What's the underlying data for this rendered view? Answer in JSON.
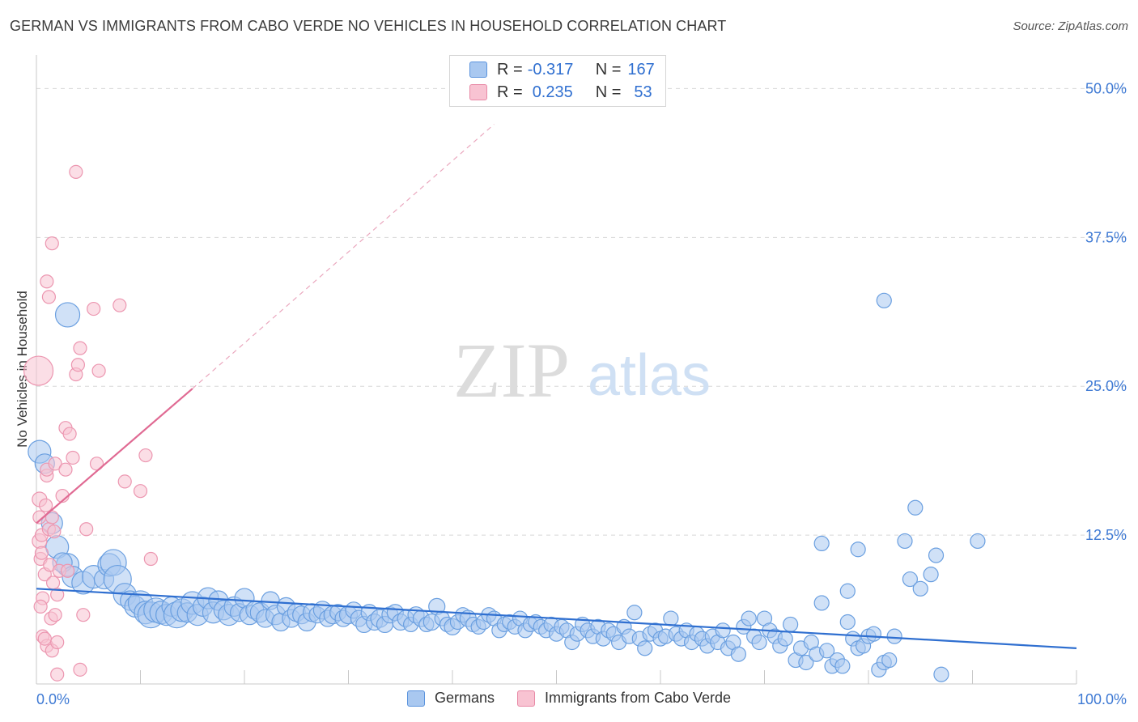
{
  "title": "GERMAN VS IMMIGRANTS FROM CABO VERDE NO VEHICLES IN HOUSEHOLD CORRELATION CHART",
  "source": "Source: ZipAtlas.com",
  "watermark": {
    "zip": "ZIP",
    "atlas": "atlas"
  },
  "legend_top": {
    "rows": [
      {
        "r_label": "R =",
        "r_value": "-0.317",
        "n_label": "N =",
        "n_value": "167",
        "color": "#a9c8f0",
        "border": "#5b93dd"
      },
      {
        "r_label": "R =",
        "r_value": "0.235",
        "n_label": "N =",
        "n_value": "53",
        "color": "#f8c3d2",
        "border": "#e889a6"
      }
    ]
  },
  "legend_bottom": [
    {
      "label": "Germans",
      "color": "#a9c8f0",
      "border": "#5b93dd"
    },
    {
      "label": "Immigrants from Cabo Verde",
      "color": "#f8c3d2",
      "border": "#e889a6"
    }
  ],
  "chart_data": {
    "type": "scatter",
    "title": "GERMAN VS IMMIGRANTS FROM CABO VERDE NO VEHICLES IN HOUSEHOLD CORRELATION CHART",
    "xlabel": "",
    "ylabel": "No Vehicles in Household",
    "xlim": [
      0,
      100
    ],
    "ylim": [
      0,
      52
    ],
    "x_tick_labels": [
      "0.0%",
      "100.0%"
    ],
    "y_ticks": [
      12.5,
      25.0,
      37.5,
      50.0
    ],
    "y_tick_labels": [
      "12.5%",
      "25.0%",
      "37.5%",
      "50.0%"
    ],
    "grid": true,
    "series": [
      {
        "name": "Germans",
        "color": "#6a9fe0",
        "fill": "#a9c8f0",
        "trend": {
          "x0": 0,
          "y0": 8.0,
          "x1": 100,
          "y1": 3.0,
          "color": "#2f6fd0"
        },
        "points": [
          [
            0.3,
            19.5,
            14
          ],
          [
            0.8,
            18.5,
            12
          ],
          [
            1.5,
            13.5,
            13
          ],
          [
            2.0,
            11.5,
            14
          ],
          [
            3.0,
            10.0,
            14
          ],
          [
            2.5,
            10.2,
            12
          ],
          [
            3.5,
            9.0,
            13
          ],
          [
            4.5,
            8.5,
            14
          ],
          [
            5.5,
            9.0,
            14
          ],
          [
            6.5,
            8.8,
            12
          ],
          [
            7.0,
            10.0,
            14
          ],
          [
            7.4,
            10.2,
            16
          ],
          [
            7.8,
            8.8,
            17
          ],
          [
            8.5,
            7.5,
            14
          ],
          [
            9.0,
            7.0,
            12
          ],
          [
            9.5,
            6.5,
            13
          ],
          [
            10.0,
            6.8,
            15
          ],
          [
            10.5,
            6.0,
            14
          ],
          [
            11.0,
            5.8,
            16
          ],
          [
            11.5,
            6.2,
            15
          ],
          [
            12.0,
            6.0,
            14
          ],
          [
            12.5,
            5.8,
            13
          ],
          [
            13.0,
            6.5,
            12
          ],
          [
            13.5,
            5.8,
            16
          ],
          [
            14.0,
            6.2,
            14
          ],
          [
            14.5,
            6.0,
            12
          ],
          [
            15.0,
            6.8,
            14
          ],
          [
            15.5,
            5.8,
            13
          ],
          [
            16.0,
            6.5,
            12
          ],
          [
            16.5,
            7.2,
            13
          ],
          [
            17.0,
            6.0,
            13
          ],
          [
            17.5,
            7.0,
            12
          ],
          [
            18.0,
            6.2,
            12
          ],
          [
            18.5,
            5.8,
            13
          ],
          [
            19.0,
            6.5,
            12
          ],
          [
            19.5,
            6.0,
            11
          ],
          [
            20.0,
            7.2,
            12
          ],
          [
            20.5,
            5.8,
            12
          ],
          [
            21.0,
            6.2,
            11
          ],
          [
            21.5,
            6.0,
            12
          ],
          [
            22.0,
            5.5,
            11
          ],
          [
            22.5,
            7.0,
            11
          ],
          [
            23.0,
            5.8,
            12
          ],
          [
            23.5,
            5.2,
            11
          ],
          [
            24.0,
            6.5,
            11
          ],
          [
            24.5,
            5.5,
            11
          ],
          [
            25.0,
            6.0,
            11
          ],
          [
            25.5,
            5.8,
            11
          ],
          [
            26.0,
            5.2,
            11
          ],
          [
            26.5,
            6.0,
            11
          ],
          [
            27.0,
            5.8,
            10
          ],
          [
            27.5,
            6.2,
            11
          ],
          [
            28.0,
            5.5,
            10
          ],
          [
            28.5,
            5.8,
            11
          ],
          [
            29.0,
            6.0,
            10
          ],
          [
            29.5,
            5.5,
            10
          ],
          [
            30.0,
            5.8,
            11
          ],
          [
            30.5,
            6.2,
            10
          ],
          [
            31.0,
            5.5,
            10
          ],
          [
            31.5,
            5.0,
            10
          ],
          [
            32.0,
            6.0,
            10
          ],
          [
            32.5,
            5.2,
            10
          ],
          [
            33.0,
            5.5,
            11
          ],
          [
            33.5,
            5.0,
            10
          ],
          [
            34.0,
            5.8,
            10
          ],
          [
            34.5,
            6.0,
            10
          ],
          [
            35.0,
            5.2,
            10
          ],
          [
            35.5,
            5.5,
            10
          ],
          [
            36.0,
            5.0,
            9
          ],
          [
            36.5,
            5.8,
            10
          ],
          [
            37.0,
            5.5,
            10
          ],
          [
            37.5,
            5.0,
            9
          ],
          [
            38.0,
            5.2,
            10
          ],
          [
            38.5,
            6.5,
            10
          ],
          [
            39.0,
            5.5,
            9
          ],
          [
            39.5,
            5.0,
            9
          ],
          [
            40.0,
            4.8,
            10
          ],
          [
            40.5,
            5.2,
            9
          ],
          [
            41.0,
            5.8,
            9
          ],
          [
            41.5,
            5.5,
            10
          ],
          [
            42.0,
            5.0,
            9
          ],
          [
            42.5,
            4.8,
            9
          ],
          [
            43.0,
            5.2,
            9
          ],
          [
            43.5,
            5.8,
            9
          ],
          [
            44.0,
            5.5,
            9
          ],
          [
            44.5,
            4.5,
            9
          ],
          [
            45.0,
            5.0,
            9
          ],
          [
            45.5,
            5.2,
            9
          ],
          [
            46.0,
            4.8,
            9
          ],
          [
            46.5,
            5.5,
            9
          ],
          [
            47.0,
            4.5,
            9
          ],
          [
            47.5,
            5.0,
            9
          ],
          [
            48.0,
            5.2,
            9
          ],
          [
            48.5,
            4.8,
            9
          ],
          [
            49.0,
            4.5,
            9
          ],
          [
            49.5,
            5.0,
            9
          ],
          [
            50.0,
            4.2,
            9
          ],
          [
            50.5,
            4.8,
            9
          ],
          [
            51.0,
            4.5,
            9
          ],
          [
            51.5,
            3.5,
            9
          ],
          [
            52.0,
            4.2,
            9
          ],
          [
            52.5,
            5.0,
            9
          ],
          [
            53.0,
            4.5,
            9
          ],
          [
            53.5,
            4.0,
            9
          ],
          [
            54.0,
            4.8,
            9
          ],
          [
            54.5,
            3.8,
            9
          ],
          [
            55.0,
            4.5,
            9
          ],
          [
            55.5,
            4.2,
            9
          ],
          [
            56.0,
            3.5,
            9
          ],
          [
            56.5,
            4.8,
            9
          ],
          [
            57.0,
            4.0,
            9
          ],
          [
            57.5,
            6.0,
            9
          ],
          [
            58.0,
            3.8,
            9
          ],
          [
            58.5,
            3.0,
            9
          ],
          [
            59.0,
            4.2,
            9
          ],
          [
            59.5,
            4.5,
            9
          ],
          [
            60.0,
            3.8,
            9
          ],
          [
            60.5,
            4.0,
            9
          ],
          [
            61.0,
            5.5,
            9
          ],
          [
            61.5,
            4.2,
            9
          ],
          [
            62.0,
            3.8,
            9
          ],
          [
            62.5,
            4.5,
            9
          ],
          [
            63.0,
            3.5,
            9
          ],
          [
            63.5,
            4.2,
            9
          ],
          [
            64.0,
            3.8,
            9
          ],
          [
            64.5,
            3.2,
            9
          ],
          [
            65.0,
            4.0,
            9
          ],
          [
            65.5,
            3.5,
            9
          ],
          [
            66.0,
            4.5,
            9
          ],
          [
            66.5,
            3.0,
            9
          ],
          [
            67.0,
            3.5,
            9
          ],
          [
            67.5,
            2.5,
            9
          ],
          [
            68.0,
            4.8,
            9
          ],
          [
            68.5,
            5.5,
            9
          ],
          [
            69.0,
            4.0,
            9
          ],
          [
            69.5,
            3.5,
            9
          ],
          [
            70.0,
            5.5,
            9
          ],
          [
            70.5,
            4.5,
            9
          ],
          [
            71.0,
            4.0,
            9
          ],
          [
            71.5,
            3.2,
            9
          ],
          [
            72.0,
            3.8,
            9
          ],
          [
            72.5,
            5.0,
            9
          ],
          [
            73.0,
            2.0,
            9
          ],
          [
            73.5,
            3.0,
            9
          ],
          [
            74.0,
            1.8,
            9
          ],
          [
            74.5,
            3.5,
            9
          ],
          [
            75.0,
            2.5,
            9
          ],
          [
            75.5,
            6.8,
            9
          ],
          [
            76.0,
            2.8,
            9
          ],
          [
            76.5,
            1.5,
            9
          ],
          [
            77.0,
            2.0,
            9
          ],
          [
            77.5,
            1.5,
            9
          ],
          [
            78.0,
            5.2,
            9
          ],
          [
            78.5,
            3.8,
            9
          ],
          [
            79.0,
            3.0,
            9
          ],
          [
            79.5,
            3.2,
            9
          ],
          [
            80.0,
            4.0,
            9
          ],
          [
            80.5,
            4.2,
            9
          ],
          [
            81.0,
            1.2,
            9
          ],
          [
            81.5,
            1.8,
            9
          ],
          [
            82.0,
            2.0,
            9
          ],
          [
            82.5,
            4.0,
            9
          ],
          [
            84.0,
            8.8,
            9
          ],
          [
            85.0,
            8.0,
            9
          ],
          [
            86.0,
            9.2,
            9
          ],
          [
            87.0,
            0.8,
            9
          ],
          [
            86.5,
            10.8,
            9
          ],
          [
            78.0,
            7.8,
            9
          ],
          [
            75.5,
            11.8,
            9
          ],
          [
            79.0,
            11.3,
            9
          ],
          [
            90.5,
            12.0,
            9
          ],
          [
            83.5,
            12.0,
            9
          ],
          [
            84.5,
            14.8,
            9
          ],
          [
            81.5,
            32.2,
            9
          ],
          [
            3.0,
            31.0,
            15
          ]
        ]
      },
      {
        "name": "Immigrants from Cabo Verde",
        "color": "#ec96b0",
        "fill": "#f8c3d2",
        "trend": {
          "x0": 0,
          "y0": 13.5,
          "x1": 15,
          "y1": 24.8,
          "dash_x1": 44,
          "dash_y1": 47.0,
          "color": "#e06a93"
        },
        "points": [
          [
            0.2,
            26.3,
            18
          ],
          [
            0.3,
            15.5,
            9
          ],
          [
            0.3,
            14.0,
            8
          ],
          [
            0.3,
            12.0,
            9
          ],
          [
            0.4,
            10.5,
            8
          ],
          [
            0.5,
            12.5,
            8
          ],
          [
            0.6,
            7.2,
            8
          ],
          [
            0.6,
            4.0,
            8
          ],
          [
            0.8,
            9.2,
            8
          ],
          [
            0.9,
            15.0,
            8
          ],
          [
            1.0,
            17.5,
            8
          ],
          [
            1.0,
            18.0,
            8
          ],
          [
            1.0,
            3.2,
            8
          ],
          [
            1.2,
            13.0,
            8
          ],
          [
            1.2,
            32.5,
            8
          ],
          [
            1.3,
            10.0,
            8
          ],
          [
            1.4,
            5.5,
            8
          ],
          [
            1.5,
            2.8,
            8
          ],
          [
            1.5,
            14.0,
            8
          ],
          [
            1.5,
            37.0,
            8
          ],
          [
            1.6,
            8.5,
            8
          ],
          [
            1.8,
            5.8,
            8
          ],
          [
            1.8,
            18.5,
            8
          ],
          [
            2.0,
            7.5,
            8
          ],
          [
            2.0,
            0.8,
            8
          ],
          [
            2.2,
            9.5,
            8
          ],
          [
            2.5,
            15.8,
            8
          ],
          [
            2.8,
            21.5,
            8
          ],
          [
            2.8,
            18.0,
            8
          ],
          [
            3.2,
            21.0,
            8
          ],
          [
            3.5,
            19.0,
            8
          ],
          [
            3.8,
            43.0,
            8
          ],
          [
            3.8,
            26.0,
            8
          ],
          [
            4.0,
            26.8,
            8
          ],
          [
            4.2,
            28.2,
            8
          ],
          [
            4.2,
            1.2,
            8
          ],
          [
            4.5,
            5.8,
            8
          ],
          [
            4.8,
            13.0,
            8
          ],
          [
            5.5,
            31.5,
            8
          ],
          [
            5.8,
            18.5,
            8
          ],
          [
            6.0,
            26.3,
            8
          ],
          [
            8.0,
            31.8,
            8
          ],
          [
            8.5,
            17.0,
            8
          ],
          [
            10.0,
            16.2,
            8
          ],
          [
            10.5,
            19.2,
            8
          ],
          [
            11.0,
            10.5,
            8
          ],
          [
            1.0,
            33.8,
            8
          ],
          [
            2.0,
            3.5,
            8
          ],
          [
            0.8,
            3.8,
            8
          ],
          [
            1.7,
            12.8,
            8
          ],
          [
            0.5,
            11.0,
            8
          ],
          [
            0.4,
            6.5,
            8
          ],
          [
            3.0,
            9.5,
            8
          ]
        ]
      }
    ]
  }
}
